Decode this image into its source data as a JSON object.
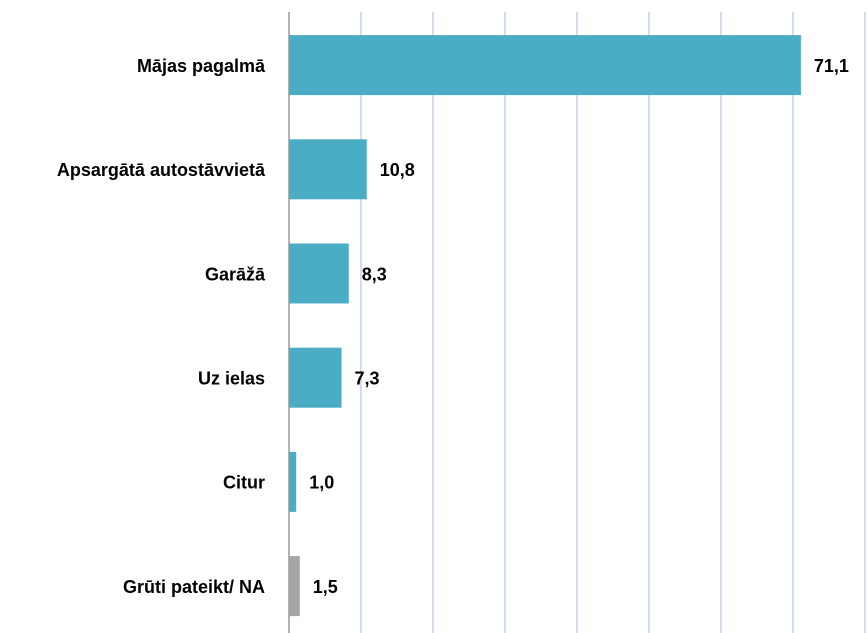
{
  "chart_data": {
    "type": "hbar",
    "categories": [
      "Mājas pagalmā",
      "Apsargātā autostāvvietā",
      "Garāžā",
      "Uz ielas",
      "Citur",
      "Grūti pateikt/ NA"
    ],
    "values": [
      71.1,
      10.8,
      8.3,
      7.3,
      1.0,
      1.5
    ],
    "value_labels": [
      "71,1",
      "10,8",
      "8,3",
      "7,3",
      "1,0",
      "1,5"
    ],
    "colors": [
      "#4bacc6",
      "#4bacc6",
      "#4bacc6",
      "#4bacc6",
      "#4bacc6",
      "#a5a5a5"
    ],
    "xlim": [
      0,
      80
    ],
    "xticks": [
      0,
      10,
      20,
      30,
      40,
      50,
      60,
      70,
      80
    ],
    "grid": true
  }
}
